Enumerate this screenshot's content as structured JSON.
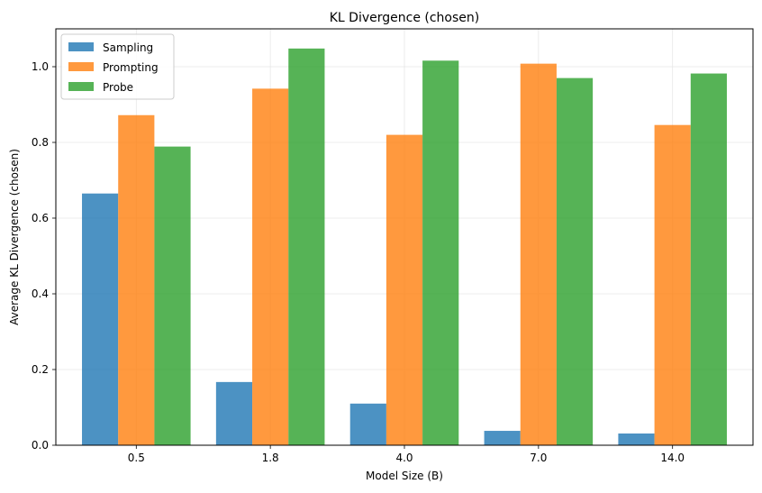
{
  "chart_data": {
    "type": "bar",
    "title": "KL Divergence (chosen)",
    "xlabel": "Model Size (B)",
    "ylabel": "Average KL Divergence (chosen)",
    "categories": [
      "0.5",
      "1.8",
      "4.0",
      "7.0",
      "14.0"
    ],
    "series": [
      {
        "name": "Sampling",
        "color": "#1f77b4",
        "values": [
          0.665,
          0.167,
          0.11,
          0.038,
          0.031
        ]
      },
      {
        "name": "Prompting",
        "color": "#ff7f0e",
        "values": [
          0.872,
          0.942,
          0.82,
          1.008,
          0.846
        ]
      },
      {
        "name": "Probe",
        "color": "#2ca02c",
        "values": [
          0.789,
          1.048,
          1.016,
          0.97,
          0.982
        ]
      }
    ],
    "ylim": [
      0,
      1.1
    ],
    "yticks": [
      0.0,
      0.2,
      0.4,
      0.6,
      0.8,
      1.0
    ],
    "ytick_labels": [
      "0.0",
      "0.2",
      "0.4",
      "0.6",
      "0.8",
      "1.0"
    ],
    "grid": true,
    "legend_position": "top-left"
  }
}
